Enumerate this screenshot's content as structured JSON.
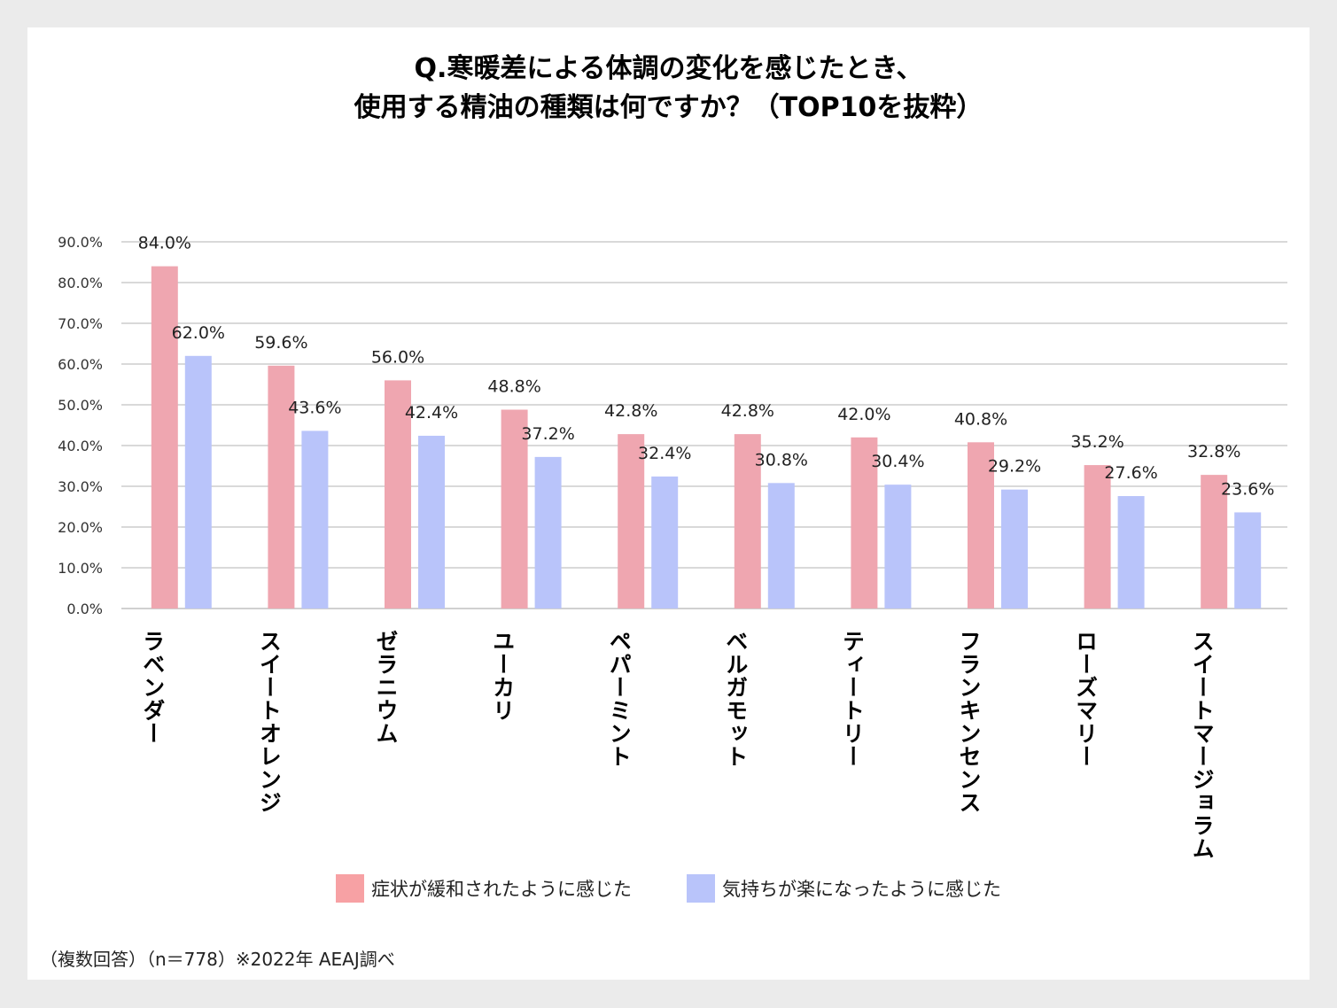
{
  "chart_data": {
    "type": "bar",
    "title": "Q.寒暖差による体調の変化を感じたとき、\n使用する精油の種類は何ですか？（TOP10を抜粋）",
    "title_lines": [
      "Q.寒暖差による体調の変化を感じたとき、",
      "使用する精油の種類は何ですか？（TOP10を抜粋）"
    ],
    "xlabel": "",
    "ylabel": "",
    "ylim": [
      0,
      90
    ],
    "y_ticks": [
      "0.0%",
      "10.0%",
      "20.0%",
      "30.0%",
      "40.0%",
      "50.0%",
      "60.0%",
      "70.0%",
      "80.0%",
      "90.0%"
    ],
    "y_tick_values": [
      0,
      10,
      20,
      30,
      40,
      50,
      60,
      70,
      80,
      90
    ],
    "grid": true,
    "legend_position": "bottom",
    "categories": [
      "ラベンダー",
      "スイートオレンジ",
      "ゼラニウム",
      "ユーカリ",
      "ペパーミント",
      "ベルガモット",
      "ティートリー",
      "フランキンセンス",
      "ローズマリー",
      "スイートマージョラム"
    ],
    "series": [
      {
        "name": "症状が緩和されたように感じた",
        "color": "#efa6b0",
        "legend_color": "#f7a1a4",
        "values": [
          84.0,
          59.6,
          56.0,
          48.8,
          42.8,
          42.8,
          42.0,
          40.8,
          35.2,
          32.8
        ],
        "labels": [
          "84.0%",
          "59.6%",
          "56.0%",
          "48.8%",
          "42.8%",
          "42.8%",
          "42.0%",
          "40.8%",
          "35.2%",
          "32.8%"
        ]
      },
      {
        "name": "気持ちが楽になったように感じた",
        "color": "#b9c4fa",
        "legend_color": "#b9c4fa",
        "values": [
          62.0,
          43.6,
          42.4,
          37.2,
          32.4,
          30.8,
          30.4,
          29.2,
          27.6,
          23.6
        ],
        "labels": [
          "62.0%",
          "43.6%",
          "42.4%",
          "37.2%",
          "32.4%",
          "30.8%",
          "30.4%",
          "29.2%",
          "27.6%",
          "23.6%"
        ]
      }
    ],
    "footnote": "（複数回答）（n＝778）※2022年 AEAJ調べ"
  }
}
